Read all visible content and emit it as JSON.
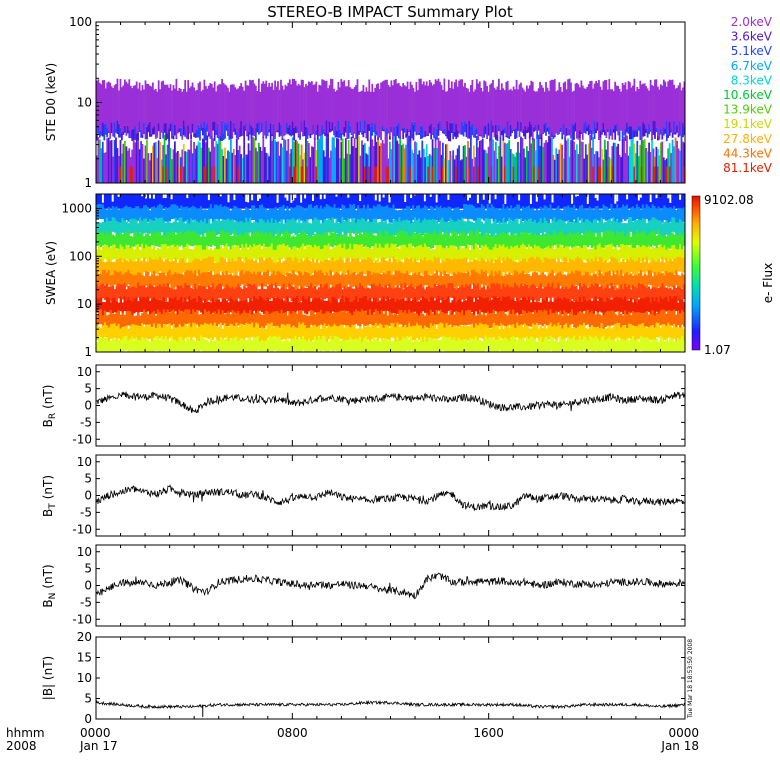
{
  "title": "STEREO-B IMPACT Summary Plot",
  "x_axis": {
    "row1_label": "hhmm",
    "row2_label": "2008",
    "ticks": [
      {
        "hour": 0,
        "time": "0000",
        "date": "Jan 17"
      },
      {
        "hour": 8,
        "time": "0800",
        "date": ""
      },
      {
        "hour": 16,
        "time": "1600",
        "date": ""
      },
      {
        "hour": 24,
        "time": "0000",
        "date": "Jan 18"
      }
    ]
  },
  "timestamp_note": "Tue Mar 18 18:53:50 2008",
  "colorbar": {
    "max_label": "9102.08",
    "min_label": "1.07",
    "title": "e- Flux"
  },
  "chart_data": [
    {
      "type": "line",
      "name": "ste-d0",
      "ylabel": "STE D0 (keV)",
      "yscale": "log",
      "ylim": [
        1,
        100
      ],
      "ytick_labels": [
        "1",
        "10",
        "100"
      ],
      "xlim_hours": [
        0,
        24
      ],
      "legend": [
        "2.0keV",
        "3.6keV",
        "5.1keV",
        "6.7keV",
        "8.3keV",
        "10.6keV",
        "13.9keV",
        "19.1keV",
        "27.8keV",
        "44.3keV",
        "81.1keV"
      ],
      "legend_colors": [
        "#9a2fd8",
        "#4b17d6",
        "#2244ff",
        "#00a8ff",
        "#00d8d8",
        "#00c830",
        "#50d000",
        "#c8d800",
        "#ffb000",
        "#ff7000",
        "#e02000"
      ],
      "approx_levels": {
        "upper_band": [
          5,
          18
        ],
        "lower_band": [
          1,
          4
        ]
      }
    },
    {
      "type": "heatmap",
      "name": "swea",
      "ylabel": "SWEA (eV)",
      "yscale": "log",
      "ylim": [
        1,
        2000
      ],
      "ytick_labels": [
        "1",
        "10",
        "100",
        "1000"
      ],
      "xlim_hours": [
        0,
        24
      ],
      "color_range": [
        1.07,
        9102.08
      ],
      "band_colors_top_to_bottom": [
        "#1028ff",
        "#0a8cff",
        "#18d0c0",
        "#3ee830",
        "#d8f000",
        "#ffb800",
        "#ff7a00",
        "#ff4010",
        "#f02000",
        "#ff6a00",
        "#ffd000",
        "#d8ff20"
      ]
    },
    {
      "type": "line",
      "name": "br",
      "ylabel": "BR (nT)",
      "ylabel_main": "B",
      "ylabel_sub": "R",
      "ylabel_unit": "(nT)",
      "ylim": [
        -12,
        12
      ],
      "ytick_labels": [
        "-10",
        "-5",
        "0",
        "5",
        "10"
      ],
      "xlim_hours": [
        0,
        24
      ],
      "x": [
        0,
        0.5,
        1,
        1.5,
        2,
        2.5,
        3,
        3.5,
        4,
        4.5,
        5,
        5.5,
        6,
        6.5,
        7,
        7.5,
        8,
        8.5,
        9,
        9.5,
        10,
        10.5,
        11,
        11.5,
        12,
        12.5,
        13,
        13.5,
        14,
        14.5,
        15,
        15.5,
        16,
        16.5,
        17,
        17.5,
        18,
        18.5,
        19,
        19.5,
        20,
        20.5,
        21,
        21.5,
        22,
        22.5,
        23,
        23.5,
        24
      ],
      "y": [
        1,
        2,
        3,
        3,
        2.5,
        3,
        2,
        0.5,
        -2,
        1,
        2,
        2.5,
        2,
        2,
        1.5,
        2,
        0.5,
        1,
        2,
        2.5,
        2,
        1.5,
        2,
        2,
        2.5,
        2.5,
        2,
        2.5,
        2,
        1.5,
        2.5,
        2,
        0.5,
        -0.5,
        -0.5,
        -0.5,
        0,
        0.5,
        0,
        1,
        1.5,
        2,
        2.5,
        1.5,
        2,
        2,
        1.5,
        3,
        3
      ]
    },
    {
      "type": "line",
      "name": "bt",
      "ylabel": "BT (nT)",
      "ylabel_main": "B",
      "ylabel_sub": "T",
      "ylabel_unit": "(nT)",
      "ylim": [
        -12,
        12
      ],
      "ytick_labels": [
        "-10",
        "-5",
        "0",
        "5",
        "10"
      ],
      "xlim_hours": [
        0,
        24
      ],
      "x": [
        0,
        0.5,
        1,
        1.5,
        2,
        2.5,
        3,
        3.5,
        4,
        4.5,
        5,
        5.5,
        6,
        6.5,
        7,
        7.5,
        8,
        8.5,
        9,
        9.5,
        10,
        10.5,
        11,
        11.5,
        12,
        12.5,
        13,
        13.5,
        14,
        14.5,
        15,
        15.5,
        16,
        16.5,
        17,
        17.5,
        18,
        18.5,
        19,
        19.5,
        20,
        20.5,
        21,
        21.5,
        22,
        22.5,
        23,
        23.5,
        24
      ],
      "y": [
        -2,
        0,
        1,
        2,
        1,
        0.5,
        2,
        1,
        0,
        1,
        1,
        1,
        0,
        0.5,
        -1,
        -2,
        -1,
        0,
        -0.5,
        1,
        -0.5,
        -1,
        -1.5,
        -1,
        -1,
        -0.5,
        -1,
        -1.5,
        0,
        0.5,
        -3,
        -3.5,
        -3,
        -3.5,
        -3,
        0,
        -1,
        -0.5,
        0,
        -1,
        -1,
        -1,
        -1.5,
        -1,
        -2,
        -1.5,
        -2,
        -1.5,
        -2
      ]
    },
    {
      "type": "line",
      "name": "bn",
      "ylabel": "BN (nT)",
      "ylabel_main": "B",
      "ylabel_sub": "N",
      "ylabel_unit": "(nT)",
      "ylim": [
        -12,
        12
      ],
      "ytick_labels": [
        "-10",
        "-5",
        "0",
        "5",
        "10"
      ],
      "xlim_hours": [
        0,
        24
      ],
      "x": [
        0,
        0.5,
        1,
        1.5,
        2,
        2.5,
        3,
        3.5,
        4,
        4.5,
        5,
        5.5,
        6,
        6.5,
        7,
        7.5,
        8,
        8.5,
        9,
        9.5,
        10,
        10.5,
        11,
        11.5,
        12,
        12.5,
        13,
        13.5,
        14,
        14.5,
        15,
        15.5,
        16,
        16.5,
        17,
        17.5,
        18,
        18.5,
        19,
        19.5,
        20,
        20.5,
        21,
        21.5,
        22,
        22.5,
        23,
        23.5,
        24
      ],
      "y": [
        -3,
        -1,
        1,
        0.5,
        1,
        0,
        1,
        1.5,
        -1,
        -2,
        1,
        1.5,
        2,
        2,
        1.5,
        1,
        0.5,
        0,
        0.5,
        0,
        0.5,
        0,
        0,
        -1,
        -1.5,
        -2,
        -3,
        2,
        3,
        1,
        1,
        1.5,
        1,
        1.5,
        0.5,
        1,
        0,
        0.5,
        1,
        0.5,
        0.5,
        0,
        1,
        1,
        1,
        1,
        0.5,
        0.5,
        1
      ]
    },
    {
      "type": "line",
      "name": "bmag",
      "ylabel": "|B| (nT)",
      "ylim": [
        0,
        20
      ],
      "ytick_labels": [
        "0",
        "5",
        "10",
        "15",
        "20"
      ],
      "xlim_hours": [
        0,
        24
      ],
      "x": [
        0,
        1,
        2,
        3,
        4,
        5,
        6,
        7,
        8,
        9,
        10,
        11,
        12,
        13,
        14,
        15,
        16,
        17,
        18,
        19,
        20,
        21,
        22,
        23,
        24
      ],
      "y": [
        4,
        3.5,
        3,
        3,
        3,
        3.5,
        3.5,
        3.5,
        3.5,
        3.5,
        3.5,
        4,
        4,
        3.5,
        3.5,
        3.5,
        3.5,
        3.5,
        3,
        3,
        3.5,
        3.5,
        3.5,
        3,
        3.5
      ],
      "dips": [
        {
          "x": 4.35,
          "y": 0.5
        }
      ]
    }
  ]
}
